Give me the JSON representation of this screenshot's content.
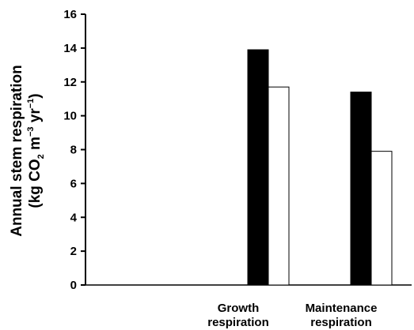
{
  "chart_data": {
    "type": "bar",
    "categories": [
      [
        "",
        ""
      ],
      [
        "Growth",
        "respiration"
      ],
      [
        "Maintenance",
        "respiration"
      ]
    ],
    "series": [
      {
        "color": "#000000",
        "values": [
          0,
          13.9,
          11.4
        ]
      },
      {
        "color": "#ffffff",
        "values": [
          0,
          11.7,
          7.9
        ]
      }
    ],
    "ylabel_line1": "Annual stem respiration",
    "ylabel_line2": {
      "p1": "(kg CO",
      "sub": "2",
      "p2": " m",
      "sup1": "−3",
      "p3": " yr",
      "sup2": "−1",
      "p4": ")"
    },
    "yticks": [
      "0",
      "2",
      "4",
      "6",
      "8",
      "10",
      "12",
      "14",
      "16"
    ],
    "ylim": [
      0,
      16
    ],
    "grid": false
  }
}
